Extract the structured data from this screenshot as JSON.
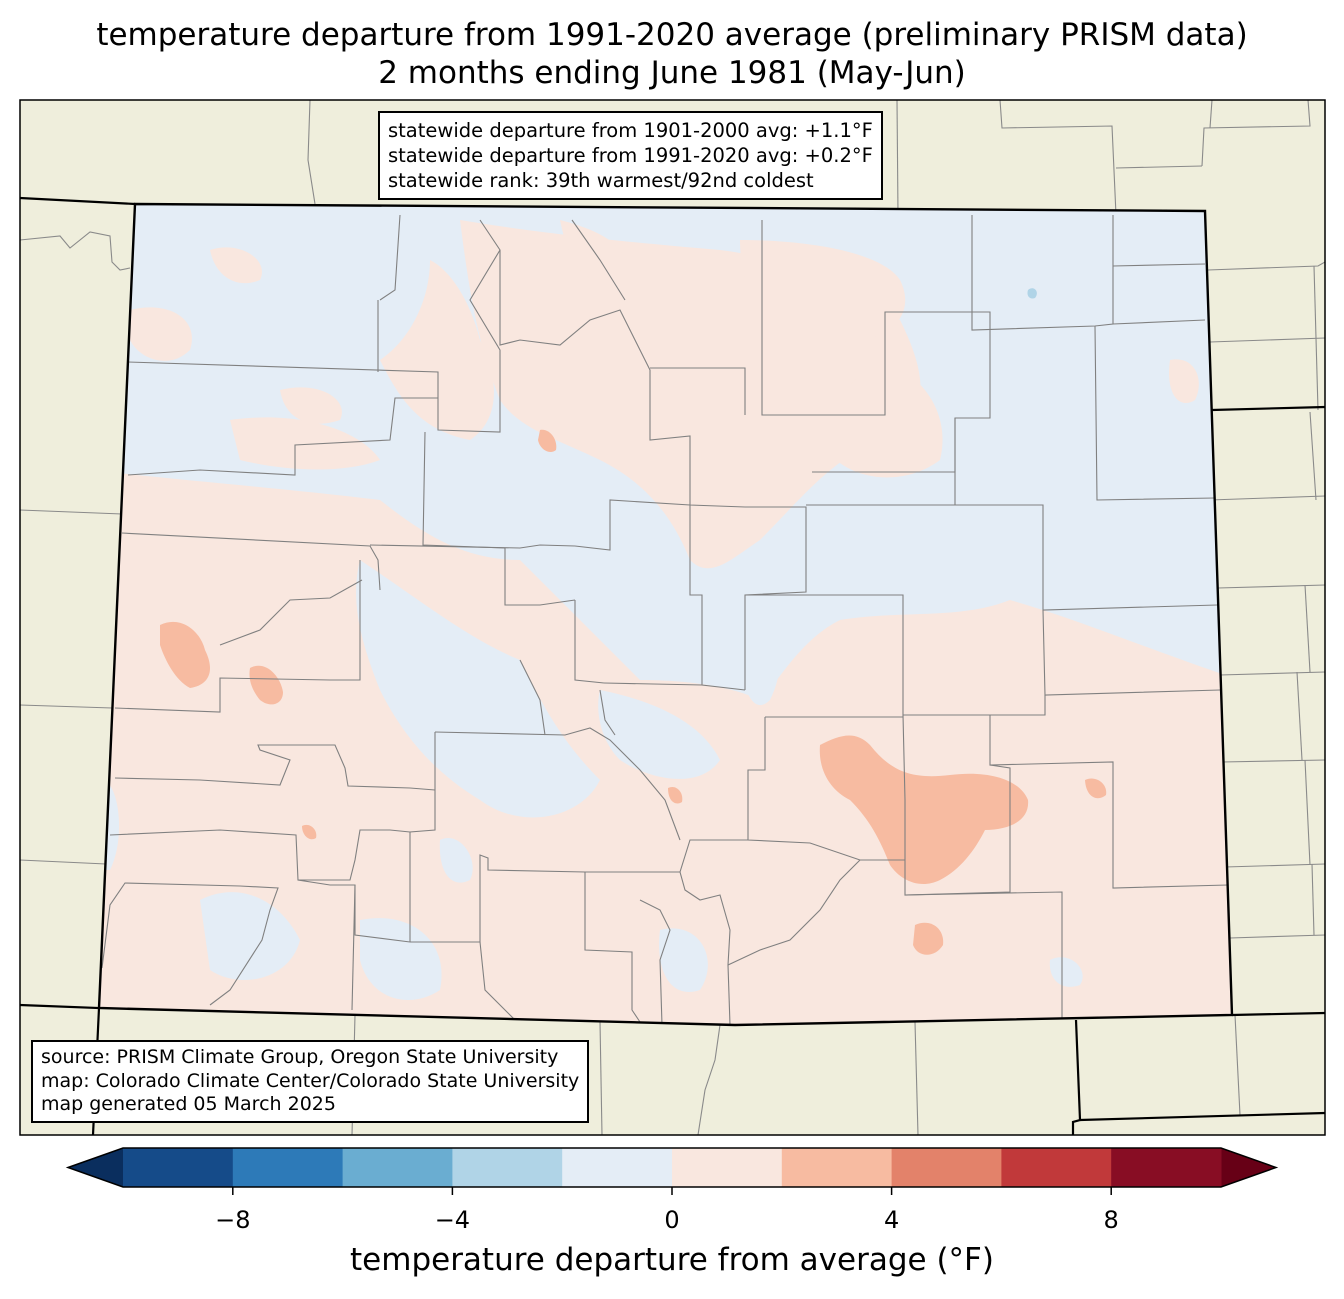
{
  "title": {
    "line1": "temperature departure from 1991-2020 average (preliminary PRISM data)",
    "line2": "2 months ending June 1981 (May-Jun)"
  },
  "stats": {
    "line1": "statewide departure from 1901-2000 avg: +1.1°F",
    "line2": "statewide departure from 1991-2020 avg: +0.2°F",
    "line3": "statewide rank: 39th warmest/92nd coldest"
  },
  "source": {
    "line1": "source: PRISM Climate Group, Oregon State University",
    "line2": "map: Colorado Climate Center/Colorado State University",
    "line3": "map generated 05 March 2025"
  },
  "colorbar": {
    "label": "temperature departure from average (°F)",
    "range": [
      -10,
      10
    ],
    "ticks": [
      {
        "value": -8,
        "label": "−8"
      },
      {
        "value": -4,
        "label": "−4"
      },
      {
        "value": 0,
        "label": "0"
      },
      {
        "value": 4,
        "label": "4"
      },
      {
        "value": 8,
        "label": "8"
      }
    ],
    "bins": [
      {
        "from": -10,
        "to": -8,
        "color": "#154b89"
      },
      {
        "from": -8,
        "to": -6,
        "color": "#2d7ab8"
      },
      {
        "from": -6,
        "to": -4,
        "color": "#6aadd1"
      },
      {
        "from": -4,
        "to": -2,
        "color": "#b0d4e7"
      },
      {
        "from": -2,
        "to": 0,
        "color": "#e4edf6"
      },
      {
        "from": 0,
        "to": 2,
        "color": "#f9e7df"
      },
      {
        "from": 2,
        "to": 4,
        "color": "#f7bba1"
      },
      {
        "from": 4,
        "to": 6,
        "color": "#e3826a"
      },
      {
        "from": 6,
        "to": 8,
        "color": "#c1393a"
      },
      {
        "from": 8,
        "to": 10,
        "color": "#880d24"
      }
    ],
    "under_color": "#0a2e5e",
    "over_color": "#670016"
  },
  "colors": {
    "background_land": "#efeedc",
    "county_lines": "#8a8a8a",
    "state_border": "#000000"
  }
}
